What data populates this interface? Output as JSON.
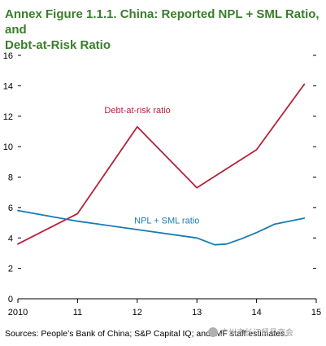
{
  "title_lines": [
    "Annex Figure 1.1.1. China: Reported NPL + SML Ratio, and",
    "Debt-at-Risk Ratio"
  ],
  "source_note": "Sources: People’s Bank of China; S&P Capital IQ; and IMF staff estimates.",
  "watermark": "广州市长江贸易商会",
  "colors": {
    "title": "#3a7d2c",
    "debt_at_risk": "#b5203b",
    "npl_sml": "#1a7ab3"
  },
  "chart_data": {
    "type": "line",
    "title": "Annex Figure 1.1.1. China: Reported NPL + SML Ratio, and Debt-at-Risk Ratio",
    "xlabel": "",
    "ylabel": "",
    "xlim": [
      2010,
      2015
    ],
    "ylim": [
      0,
      16
    ],
    "x_ticks": [
      2010,
      2011,
      2012,
      2013,
      2014,
      2015
    ],
    "x_tick_labels": [
      "2010",
      "11",
      "12",
      "13",
      "14",
      "15"
    ],
    "y_ticks": [
      0,
      2,
      4,
      6,
      8,
      10,
      12,
      14,
      16
    ],
    "y_tick_labels": [
      "0",
      "2",
      "4",
      "6",
      "8",
      "10",
      "12",
      "14",
      "16"
    ],
    "grid": false,
    "series": [
      {
        "name": "Debt-at-risk ratio",
        "x": [
          2010,
          2011,
          2012,
          2013,
          2014,
          2014.8
        ],
        "y": [
          3.6,
          5.6,
          11.3,
          7.3,
          9.8,
          14.1
        ]
      },
      {
        "name": "NPL + SML ratio",
        "x": [
          2010,
          2011,
          2012,
          2013,
          2013.3,
          2013.5,
          2013.75,
          2014,
          2014.3,
          2014.8
        ],
        "y": [
          5.8,
          5.1,
          4.55,
          4.0,
          3.55,
          3.6,
          3.95,
          4.35,
          4.9,
          5.3
        ]
      }
    ]
  }
}
